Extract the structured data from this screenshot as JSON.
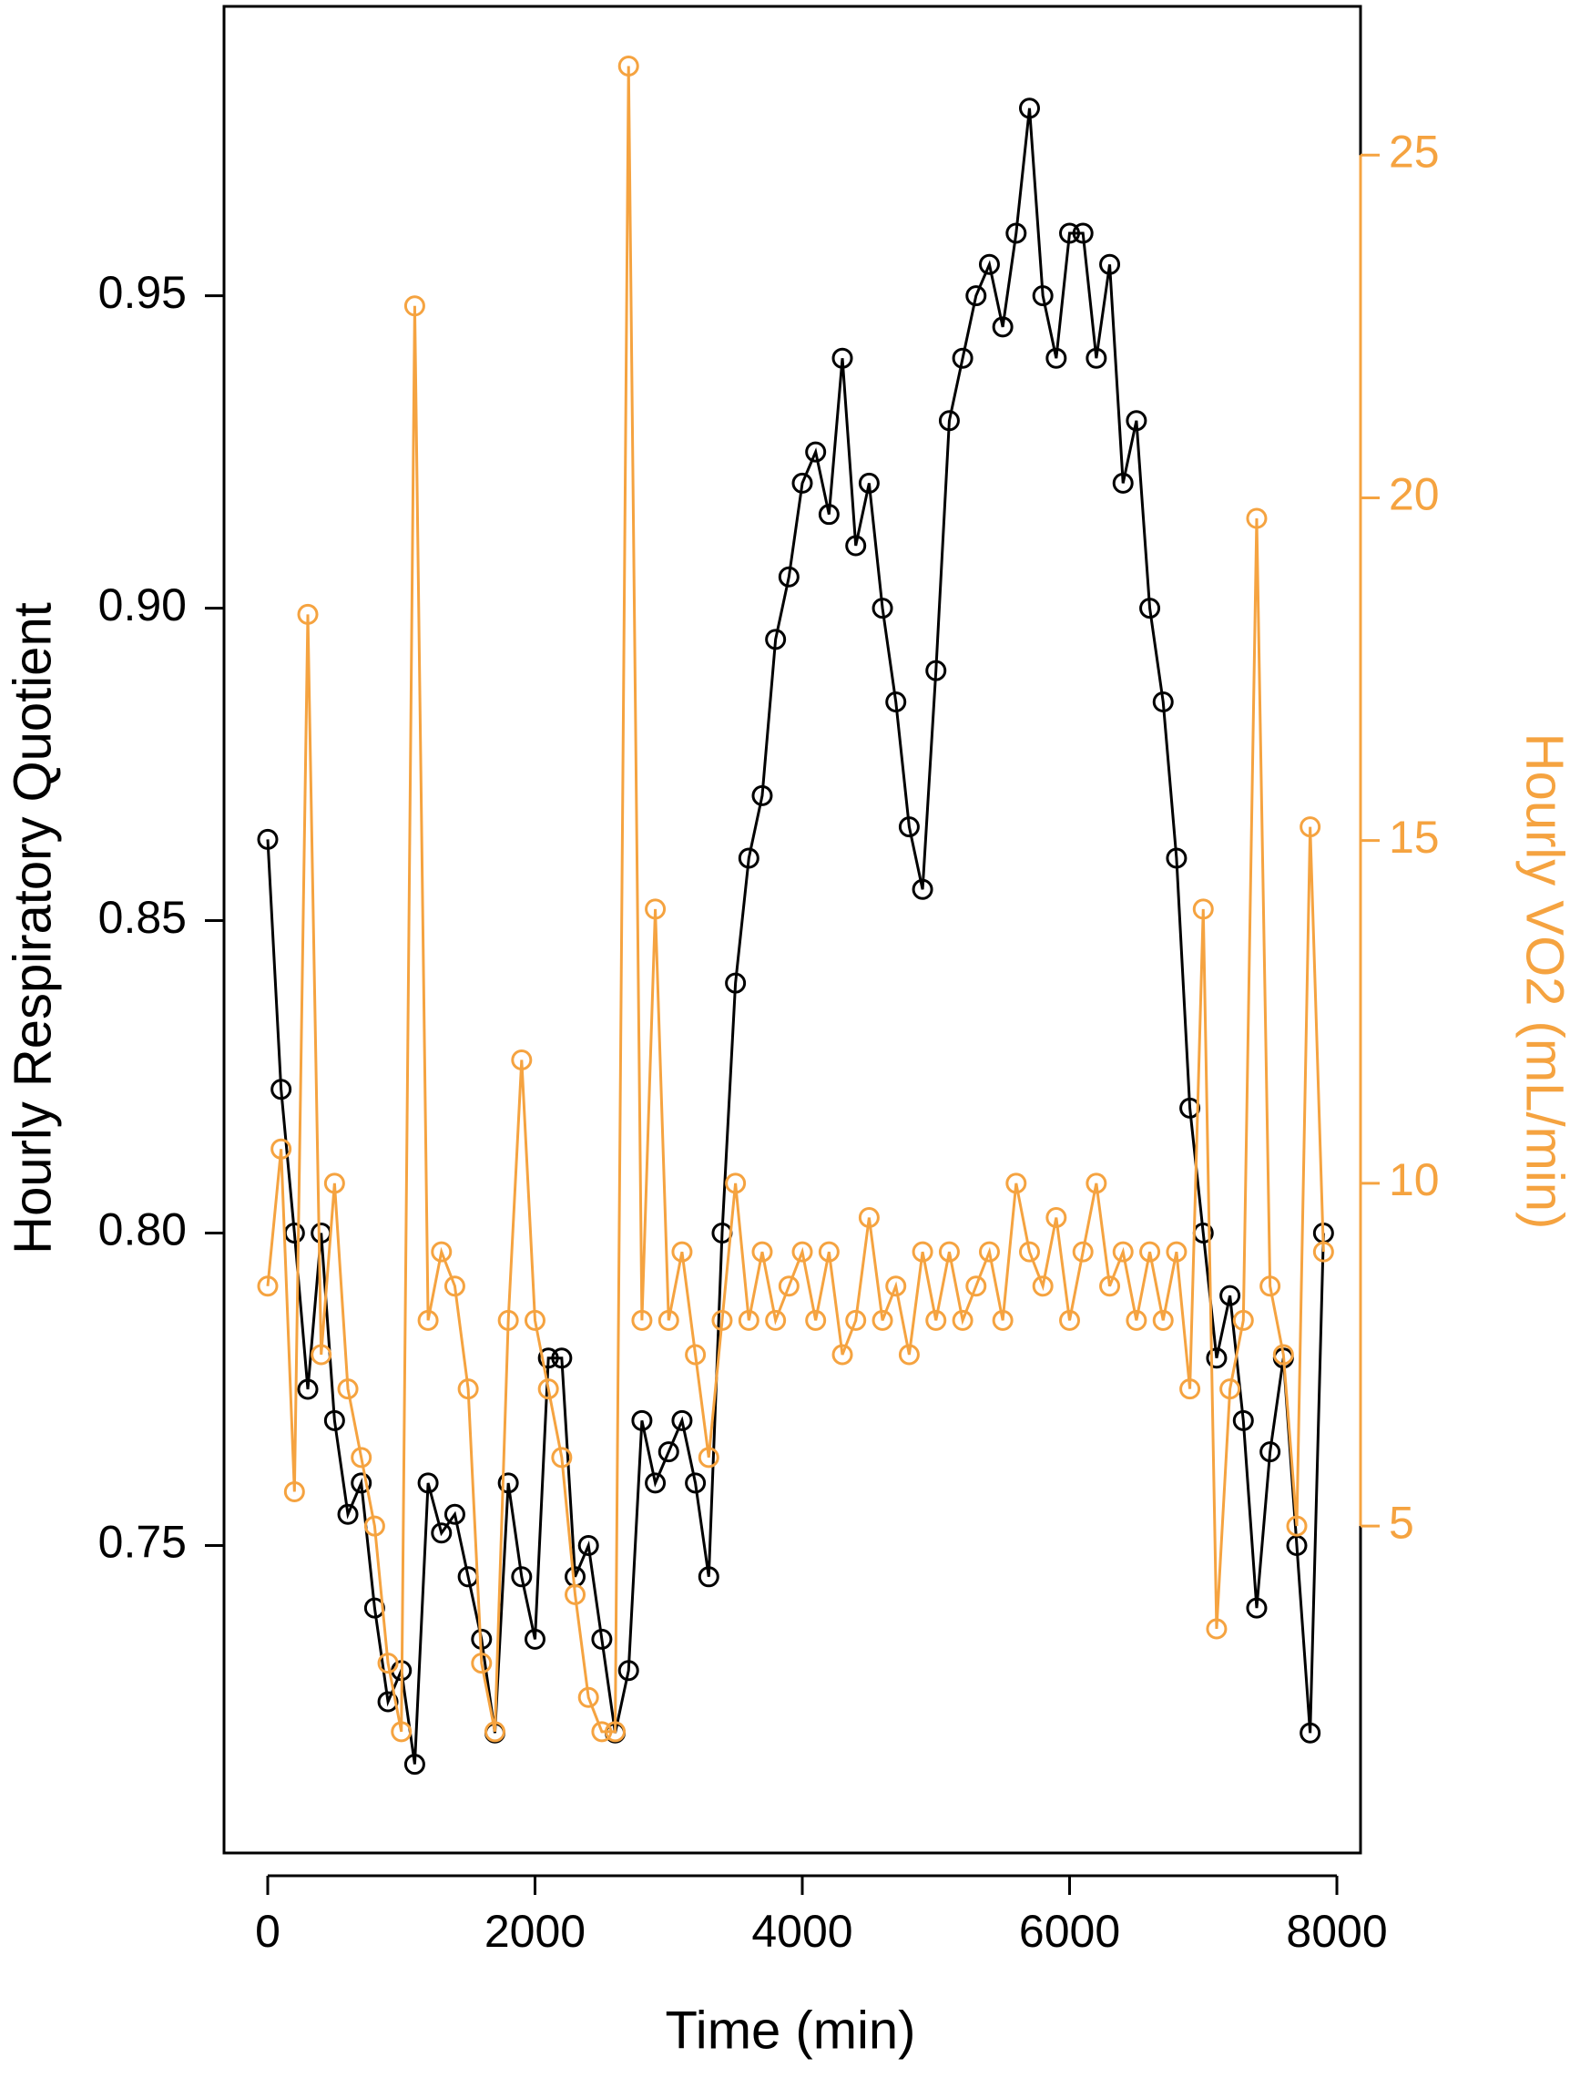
{
  "chart_data": {
    "type": "line",
    "xlabel": "Time (min)",
    "ylabel": "Hourly Respiratory Quotient",
    "y2label": "Hourly VO2 (mL/min)",
    "x": [
      0,
      100,
      200,
      300,
      400,
      500,
      600,
      700,
      800,
      900,
      1000,
      1100,
      1200,
      1300,
      1400,
      1500,
      1600,
      1700,
      1800,
      1900,
      2000,
      2100,
      2200,
      2300,
      2400,
      2500,
      2600,
      2700,
      2800,
      2900,
      3000,
      3100,
      3200,
      3300,
      3400,
      3500,
      3600,
      3700,
      3800,
      3900,
      4000,
      4100,
      4200,
      4300,
      4400,
      4500,
      4600,
      4700,
      4800,
      4900,
      5000,
      5100,
      5200,
      5300,
      5400,
      5500,
      5600,
      5700,
      5800,
      5900,
      6000,
      6100,
      6200,
      6300,
      6400,
      6500,
      6600,
      6700,
      6800,
      6900,
      7000,
      7100,
      7200,
      7300,
      7400,
      7500,
      7600,
      7700,
      7800,
      7900
    ],
    "series": [
      {
        "name": "Hourly Respiratory Quotient",
        "color": "#000000",
        "axis": "y",
        "values": [
          0.863,
          0.823,
          0.8,
          0.775,
          0.8,
          0.77,
          0.755,
          0.76,
          0.74,
          0.725,
          0.73,
          0.715,
          0.76,
          0.752,
          0.755,
          0.745,
          0.735,
          0.72,
          0.76,
          0.745,
          0.735,
          0.78,
          0.78,
          0.745,
          0.75,
          0.735,
          0.72,
          0.73,
          0.77,
          0.76,
          0.765,
          0.77,
          0.76,
          0.745,
          0.8,
          0.84,
          0.86,
          0.87,
          0.895,
          0.905,
          0.92,
          0.925,
          0.915,
          0.94,
          0.91,
          0.92,
          0.9,
          0.885,
          0.865,
          0.855,
          0.89,
          0.93,
          0.94,
          0.95,
          0.955,
          0.945,
          0.96,
          0.98,
          0.95,
          0.94,
          0.96,
          0.96,
          0.94,
          0.955,
          0.92,
          0.93,
          0.9,
          0.885,
          0.86,
          0.82,
          0.8,
          0.78,
          0.79,
          0.77,
          0.74,
          0.765,
          0.78,
          0.75,
          0.72,
          0.8
        ]
      },
      {
        "name": "Hourly VO2 (mL/min)",
        "color": "#f5a340",
        "axis": "y2",
        "values": [
          8.5,
          10.5,
          5.5,
          18.3,
          7.5,
          10,
          7,
          6,
          5,
          3,
          2,
          22.8,
          8,
          9,
          8.5,
          7,
          3,
          2,
          8,
          11.8,
          8,
          7,
          6,
          4,
          2.5,
          2,
          2,
          26.3,
          8,
          14,
          8,
          9,
          7.5,
          6,
          8,
          10,
          8,
          9,
          8,
          8.5,
          9,
          8,
          9,
          7.5,
          8,
          9.5,
          8,
          8.5,
          7.5,
          9,
          8,
          9,
          8,
          8.5,
          9,
          8,
          10,
          9,
          8.5,
          9.5,
          8,
          9,
          10,
          8.5,
          9,
          8,
          9,
          8,
          9,
          7,
          14,
          3.5,
          7,
          8,
          19.7,
          8.5,
          7.5,
          5,
          15.2,
          9
        ]
      }
    ],
    "xlim": [
      -327,
      8177
    ],
    "xticks": [
      0,
      2000,
      4000,
      6000,
      8000
    ],
    "ylim": [
      0.7008,
      0.9963
    ],
    "yticks": [
      0.75,
      {
        "value": 0.8,
        "label": "0.80"
      },
      0.85,
      {
        "value": 0.9,
        "label": "0.90"
      },
      0.95
    ],
    "y2lim": [
      0.23,
      27.17
    ],
    "y2ticks": [
      5,
      10,
      15,
      20,
      25
    ],
    "y2color": "#f5a340"
  }
}
